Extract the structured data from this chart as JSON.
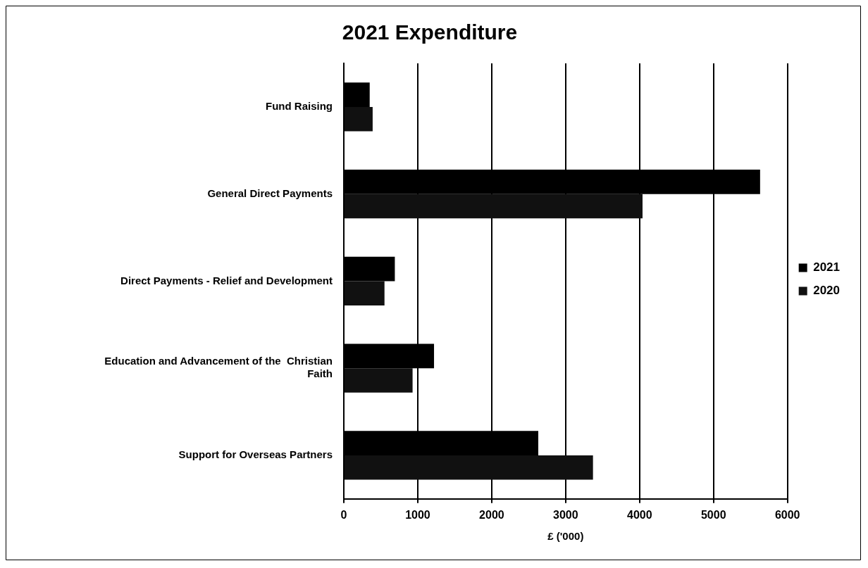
{
  "chart_data": {
    "type": "bar",
    "title": "2021 Expenditure",
    "xlabel": "£ ('000)",
    "orientation": "horizontal",
    "categories": [
      "Fund Raising",
      "General Direct Payments",
      "Direct Payments - Relief and Development",
      "Education and Advancement of the  Christian Faith",
      "Support for Overseas Partners"
    ],
    "series": [
      {
        "name": "2021",
        "color": "#000000",
        "values": [
          350,
          5630,
          690,
          1220,
          2630
        ]
      },
      {
        "name": "2020",
        "color": "#111111",
        "values": [
          390,
          4040,
          550,
          930,
          3370
        ]
      }
    ],
    "xlim": [
      0,
      6000
    ],
    "xticks": [
      0,
      1000,
      2000,
      3000,
      4000,
      5000,
      6000
    ],
    "grid": "x",
    "legend": "right"
  }
}
